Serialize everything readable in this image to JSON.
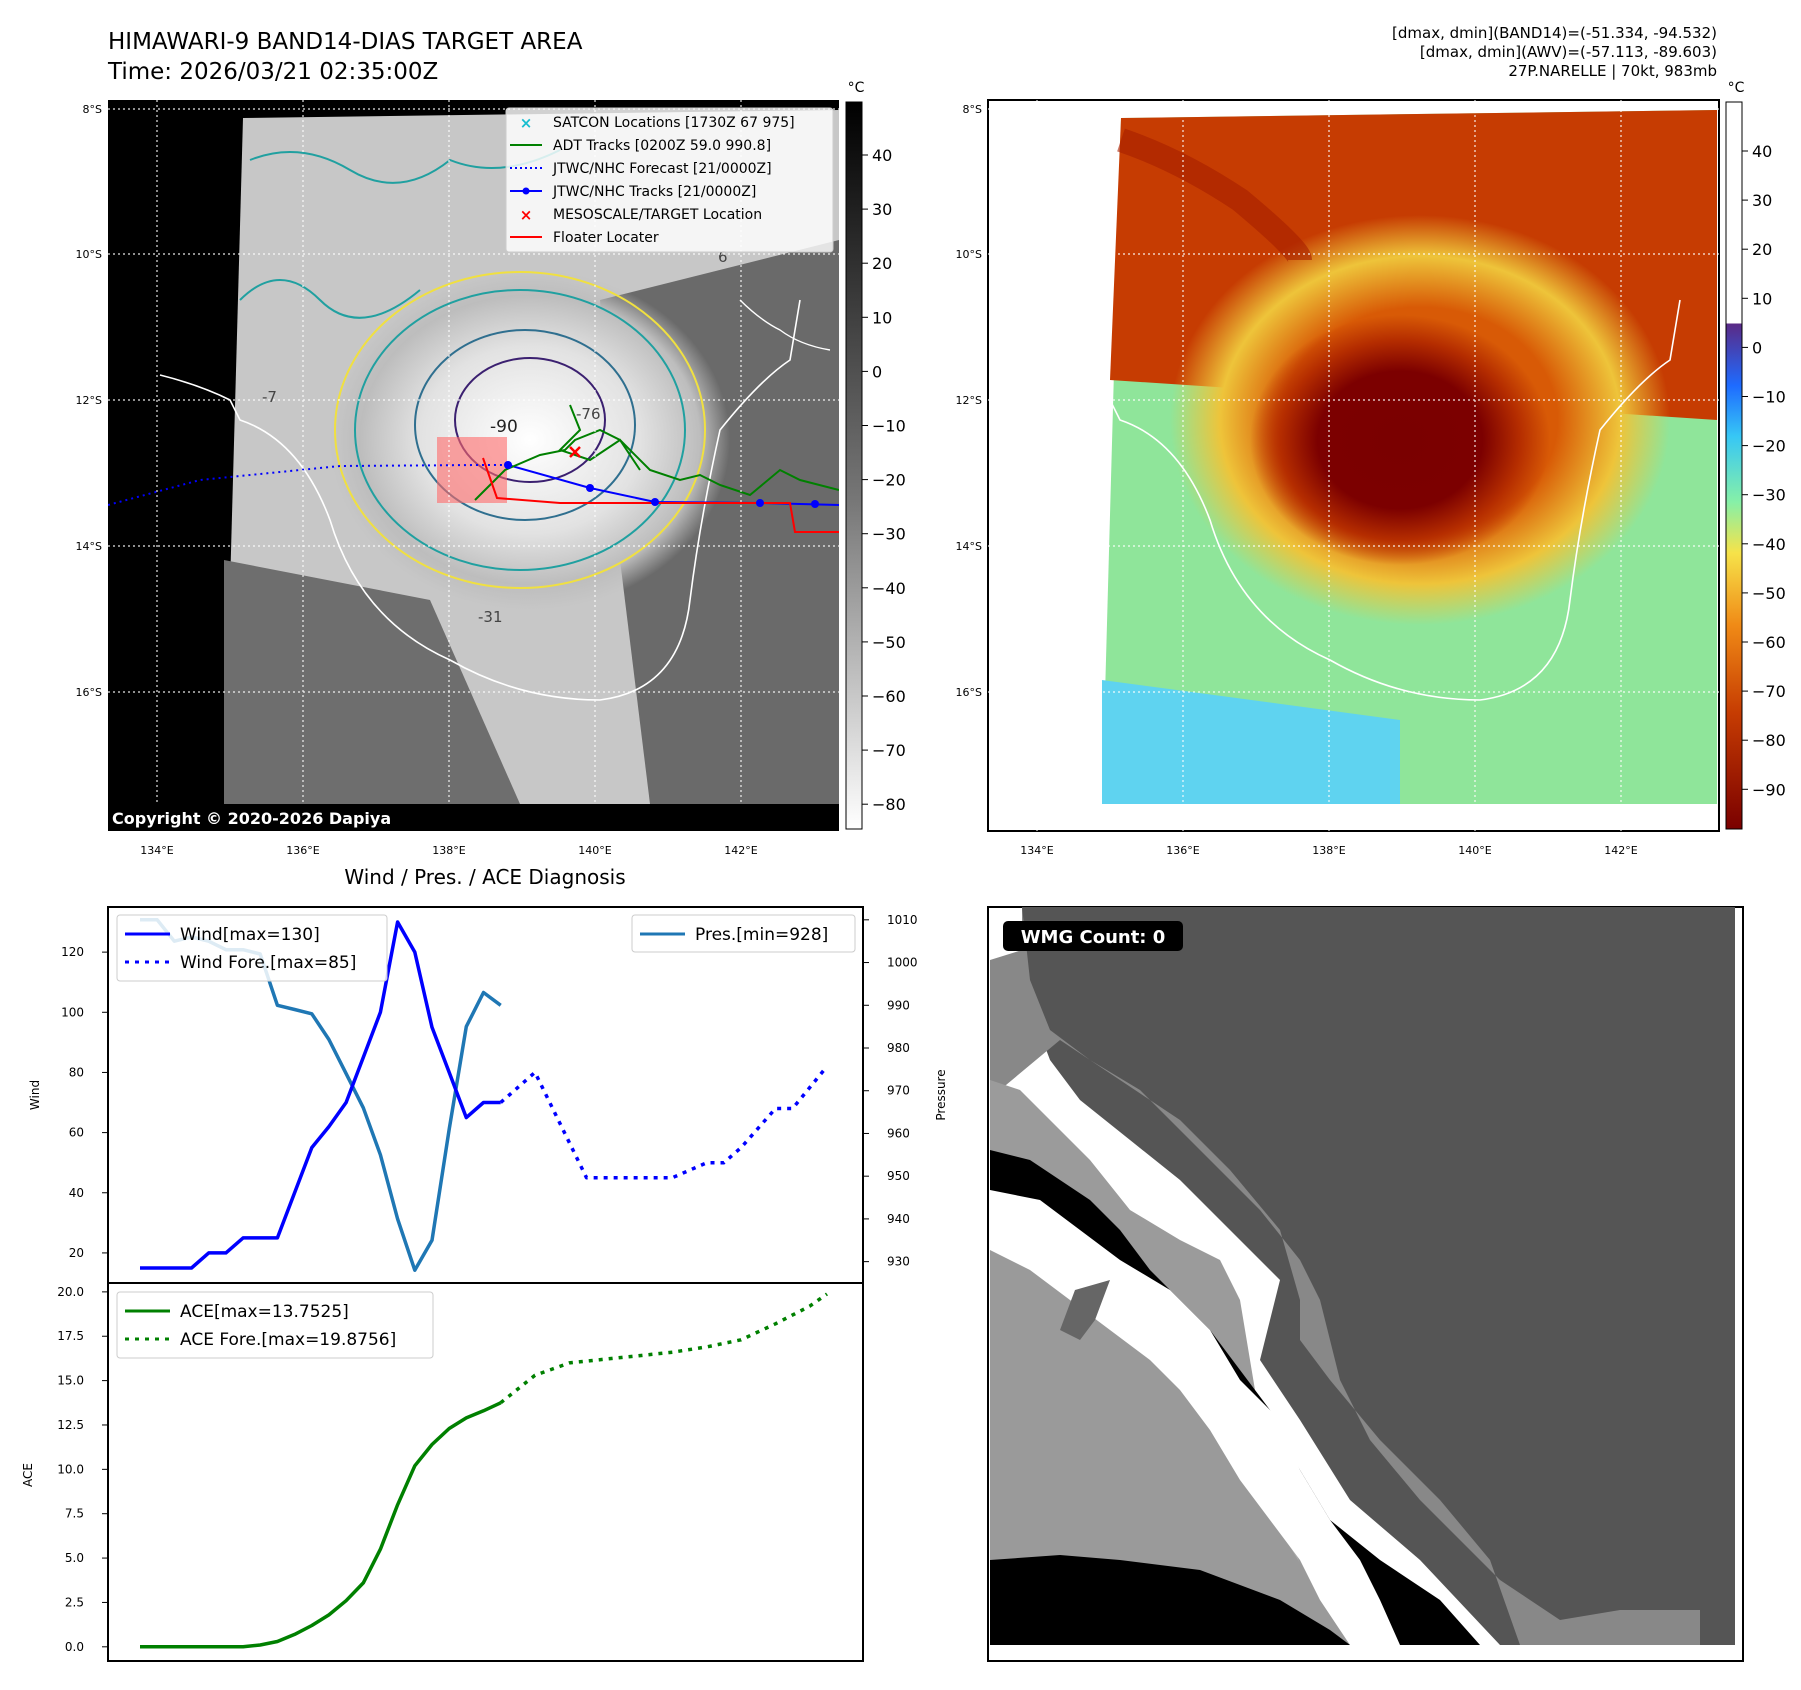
{
  "header": {
    "title": "HIMAWARI-9 BAND14-DIAS TARGET AREA",
    "time": "Time: 2026/03/21 02:35:00Z",
    "stats": [
      "[dmax, dmin](BAND14)=(-51.334, -94.532)",
      "[dmax, dmin](AWV)=(-57.113, -89.603)",
      "27P.NARELLE | 70kt, 983mb"
    ]
  },
  "map_axes": {
    "lat_labels": [
      "8°S",
      "10°S",
      "12°S",
      "14°S",
      "16°S"
    ],
    "lon_labels": [
      "134°E",
      "136°E",
      "138°E",
      "140°E",
      "142°E"
    ],
    "copyright": "Copyright © 2020-2026 Dapiya",
    "contour_labels": [
      "-90",
      "-31",
      "-7",
      "-76",
      "6"
    ]
  },
  "ir_colorbar": {
    "unit": "°C",
    "ticks": [
      "40",
      "30",
      "20",
      "10",
      "0",
      "−10",
      "−20",
      "−30",
      "−40",
      "−50",
      "−60",
      "−70",
      "−80"
    ]
  },
  "awv_colorbar": {
    "unit": "°C",
    "ticks": [
      "40",
      "30",
      "20",
      "10",
      "0",
      "−10",
      "−20",
      "−30",
      "−40",
      "−50",
      "−60",
      "−70",
      "−80",
      "−90"
    ]
  },
  "map_legend": [
    {
      "label": "SATCON Locations [1730Z 67 975]",
      "marker": "x",
      "color": "#17becf"
    },
    {
      "label": "ADT Tracks [0200Z 59.0 990.8]",
      "marker": "line",
      "color": "#008000"
    },
    {
      "label": "JTWC/NHC Forecast [21/0000Z]",
      "marker": "dotted",
      "color": "#0000ff"
    },
    {
      "label": "JTWC/NHC Tracks [21/0000Z]",
      "marker": "line-dot",
      "color": "#0000ff"
    },
    {
      "label": "MESOSCALE/TARGET Location",
      "marker": "x",
      "color": "#ff0000"
    },
    {
      "label": "Floater Locater",
      "marker": "line",
      "color": "#ff0000"
    }
  ],
  "wmg": {
    "label": "WMG Count: 0"
  },
  "colors": {
    "wind": "#0000ff",
    "pressure": "#1f77b4",
    "ace": "#008000",
    "track_forecast": "#0000ff",
    "adt": "#008000",
    "floater": "#ff0000"
  },
  "chart_data": [
    {
      "type": "line",
      "title": "Wind / Pres. / ACE Diagnosis",
      "ylabel": "Wind",
      "ylim": [
        10,
        135
      ],
      "y_ticks": [
        20,
        40,
        60,
        80,
        100,
        120
      ],
      "legend_placement": "upper-left",
      "series": [
        {
          "name": "Wind[max=130]",
          "style": "solid",
          "x": [
            0,
            1,
            2,
            3,
            4,
            5,
            6,
            7,
            8,
            9,
            10,
            11,
            12,
            13,
            14,
            15,
            16,
            17,
            18,
            19,
            20,
            21
          ],
          "values": [
            15,
            15,
            15,
            15,
            20,
            20,
            25,
            25,
            25,
            40,
            55,
            62,
            70,
            85,
            100,
            130,
            120,
            95,
            80,
            65,
            70,
            70
          ]
        },
        {
          "name": "Wind Fore.[max=85]",
          "style": "dotted",
          "x": [
            21,
            23,
            26,
            30,
            31,
            33,
            34,
            35,
            37,
            38,
            40
          ],
          "values": [
            70,
            80,
            45,
            45,
            45,
            50,
            50,
            55,
            68,
            68,
            82
          ]
        }
      ]
    },
    {
      "type": "line",
      "ylabel": "Pressure",
      "ylim": [
        925,
        1013
      ],
      "y_ticks": [
        930,
        940,
        950,
        960,
        970,
        980,
        990,
        1000,
        1010
      ],
      "legend_placement": "upper-right",
      "series": [
        {
          "name": "Pres.[min=928]",
          "style": "solid",
          "x": [
            0,
            1,
            2,
            3,
            4,
            5,
            6,
            7,
            8,
            9,
            10,
            11,
            12,
            13,
            14,
            15,
            16,
            17,
            18,
            19,
            20,
            21
          ],
          "values": [
            1010,
            1010,
            1005,
            1006,
            1005,
            1003,
            1003,
            1002,
            990,
            989,
            988,
            982,
            974,
            966,
            955,
            940,
            928,
            935,
            961,
            985,
            993,
            990
          ]
        }
      ]
    },
    {
      "type": "line",
      "ylabel": "ACE",
      "ylim": [
        -0.8,
        20.5
      ],
      "y_ticks": [
        0.0,
        2.5,
        5.0,
        7.5,
        10.0,
        12.5,
        15.0,
        17.5,
        20.0
      ],
      "legend_placement": "upper-left",
      "series": [
        {
          "name": "ACE[max=13.7525]",
          "style": "solid",
          "x": [
            0,
            1,
            2,
            3,
            4,
            5,
            6,
            7,
            8,
            9,
            10,
            11,
            12,
            13,
            14,
            15,
            16,
            17,
            18,
            19,
            20,
            21
          ],
          "values": [
            0,
            0,
            0,
            0,
            0,
            0,
            0,
            0.1,
            0.3,
            0.7,
            1.2,
            1.8,
            2.6,
            3.6,
            5.5,
            8.0,
            10.2,
            11.4,
            12.3,
            12.9,
            13.3,
            13.75
          ]
        },
        {
          "name": "ACE Fore.[max=19.8756]",
          "style": "dotted",
          "x": [
            21,
            23,
            25,
            27,
            29,
            31,
            33,
            35,
            37,
            39,
            40
          ],
          "values": [
            13.75,
            15.3,
            16.0,
            16.2,
            16.4,
            16.6,
            16.9,
            17.3,
            18.2,
            19.2,
            19.88
          ]
        }
      ]
    }
  ]
}
